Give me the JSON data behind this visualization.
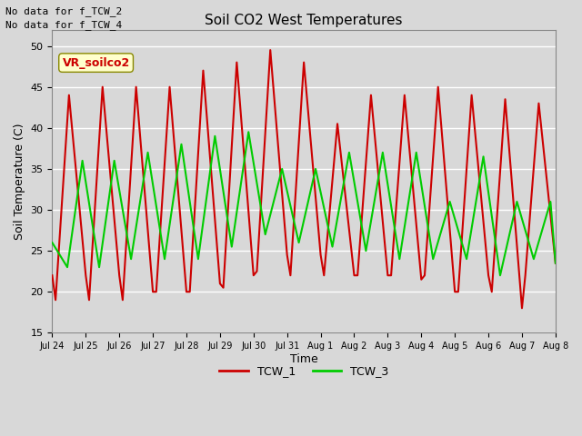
{
  "title": "Soil CO2 West Temperatures",
  "xlabel": "Time",
  "ylabel": "Soil Temperature (C)",
  "ylim": [
    15,
    52
  ],
  "yticks": [
    15,
    20,
    25,
    30,
    35,
    40,
    45,
    50
  ],
  "no_data_text": [
    "No data for f_TCW_2",
    "No data for f_TCW_4"
  ],
  "vr_label": "VR_soilco2",
  "legend_entries": [
    "TCW_1",
    "TCW_3"
  ],
  "legend_colors": [
    "#cc0000",
    "#00cc00"
  ],
  "bg_color": "#d8d8d8",
  "plot_bg_color": "#d8d8d8",
  "grid_color": "#ffffff",
  "x_tick_labels": [
    "Jul 24",
    "Jul 25",
    "Jul 26",
    "Jul 27",
    "Jul 28",
    "Jul 29",
    "Jul 30",
    "Jul 31",
    "Aug 1",
    "Aug 2",
    "Aug 3",
    "Aug 4",
    "Aug 5",
    "Aug 6",
    "Aug 7",
    "Aug 8"
  ],
  "tcw1_x": [
    0.0,
    0.1,
    0.5,
    1.0,
    1.1,
    1.5,
    2.0,
    2.1,
    2.5,
    3.0,
    3.1,
    3.5,
    4.0,
    4.1,
    4.5,
    5.0,
    5.1,
    5.5,
    6.0,
    6.1,
    6.5,
    7.0,
    7.1,
    7.5,
    8.0,
    8.1,
    8.5,
    9.0,
    9.1,
    9.5,
    10.0,
    10.1,
    10.5,
    11.0,
    11.1,
    11.5,
    12.0,
    12.1,
    12.5,
    13.0,
    13.1,
    13.5,
    14.0,
    14.1,
    14.5,
    15.0
  ],
  "tcw1_y": [
    22,
    19,
    44,
    22,
    19,
    45,
    22,
    19,
    45,
    20,
    20,
    45,
    20,
    20,
    47,
    21,
    20.5,
    48,
    22,
    22.5,
    49.5,
    24.5,
    22,
    48,
    24.5,
    22,
    40.5,
    22,
    22,
    44,
    22,
    22,
    44,
    21.5,
    22,
    45,
    20,
    20,
    44,
    22,
    20,
    43.5,
    18,
    22,
    43,
    23.5
  ],
  "tcw3_x": [
    0.0,
    0.45,
    0.9,
    1.4,
    1.85,
    2.35,
    2.85,
    3.35,
    3.85,
    4.35,
    4.85,
    5.35,
    5.85,
    6.35,
    6.85,
    7.35,
    7.85,
    8.35,
    8.85,
    9.35,
    9.85,
    10.35,
    10.85,
    11.35,
    11.85,
    12.35,
    12.85,
    13.35,
    13.85,
    14.35,
    14.85,
    15.0
  ],
  "tcw3_y": [
    26,
    23,
    36,
    23,
    36,
    24,
    37,
    24,
    38,
    24,
    39,
    25.5,
    39.5,
    27,
    35,
    26,
    35,
    25.5,
    37,
    25,
    37,
    24,
    37,
    24,
    31,
    24,
    36.5,
    22,
    31,
    24,
    31,
    23.5
  ]
}
